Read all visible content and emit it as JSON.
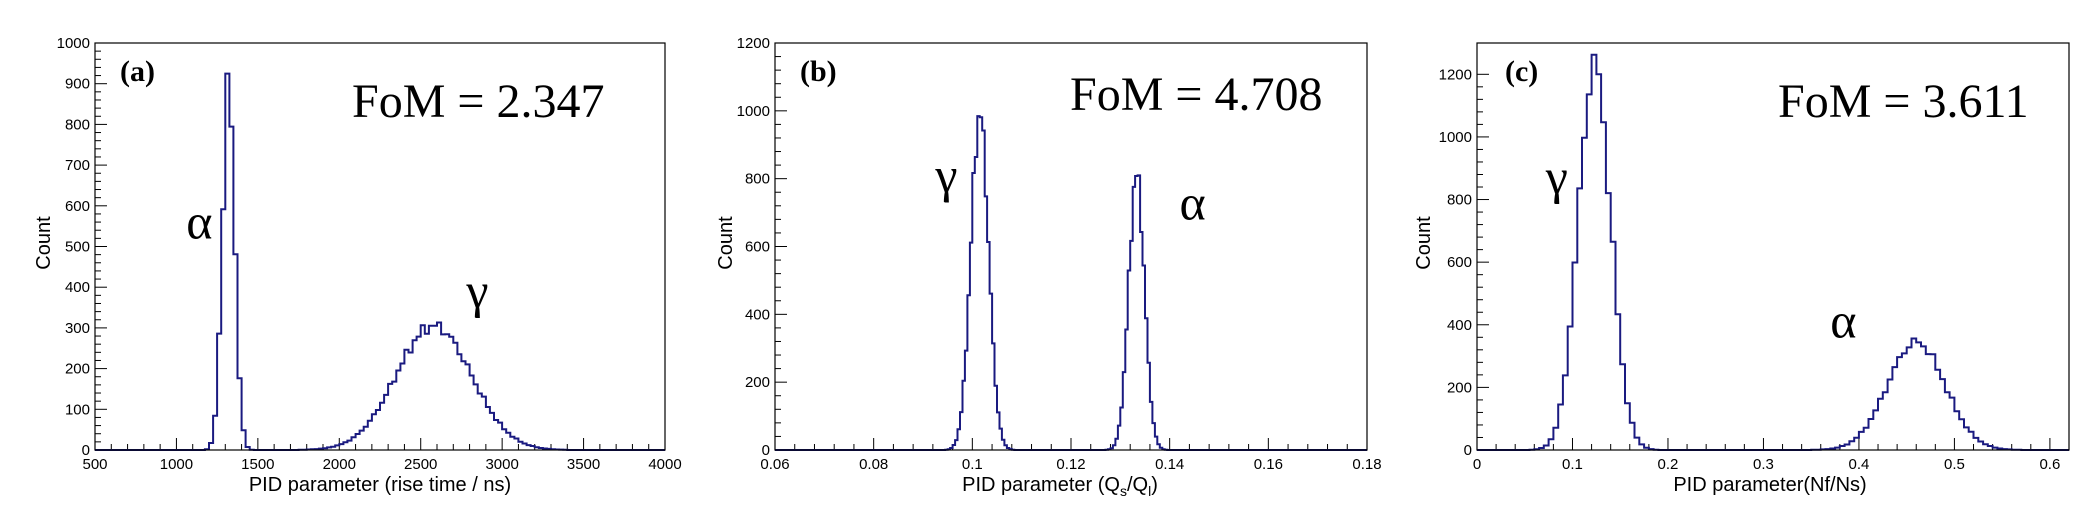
{
  "chart_data": [
    {
      "id": "a",
      "type": "histogram",
      "panel_label": "(a)",
      "annotation": "FoM = 2.347",
      "xlabel": "PID parameter (rise time / ns)",
      "ylabel": "Count",
      "xlim": [
        500,
        4000
      ],
      "ylim": [
        0,
        1000
      ],
      "xticks": [
        500,
        1000,
        1500,
        2000,
        2500,
        3000,
        3500,
        4000
      ],
      "yticks": [
        0,
        100,
        200,
        300,
        400,
        500,
        600,
        700,
        800,
        900,
        1000
      ],
      "line_color": "#1a1a80",
      "bin_width": 25,
      "peaks": [
        {
          "symbol": "α",
          "center": 1320,
          "sigma": 38,
          "height": 895,
          "label_x": 1060,
          "label_y": 520
        },
        {
          "symbol": "γ",
          "center": 2580,
          "sigma": 230,
          "height": 305,
          "label_x": 2780,
          "label_y": 350
        }
      ]
    },
    {
      "id": "b",
      "type": "histogram",
      "panel_label": "(b)",
      "annotation": "FoM = 4.708",
      "xlabel": "PID parameter (Q",
      "xlabel_sub1": "s",
      "xlabel_mid": "/Q",
      "xlabel_sub2": "l",
      "xlabel_end": ")",
      "ylabel": "Count",
      "xlim": [
        0.06,
        0.18
      ],
      "ylim": [
        0,
        1200
      ],
      "xticks": [
        0.06,
        0.08,
        0.1,
        0.12,
        0.14,
        0.16,
        0.18
      ],
      "yticks": [
        0,
        200,
        400,
        600,
        800,
        1000,
        1200
      ],
      "line_color": "#1a1a80",
      "bin_width": 0.0005,
      "peaks": [
        {
          "symbol": "γ",
          "center": 0.1015,
          "sigma": 0.0018,
          "height": 990,
          "label_x": 0.0925,
          "label_y": 760
        },
        {
          "symbol": "α",
          "center": 0.1333,
          "sigma": 0.0016,
          "height": 810,
          "label_x": 0.142,
          "label_y": 680
        }
      ]
    },
    {
      "id": "c",
      "type": "histogram",
      "panel_label": "(c)",
      "annotation": "FoM = 3.611",
      "xlabel": "PID parameter(Nf/Ns)",
      "ylabel": "Count",
      "xlim": [
        0,
        0.62
      ],
      "ylim": [
        0,
        1300
      ],
      "xticks": [
        0,
        0.1,
        0.2,
        0.3,
        0.4,
        0.5,
        0.6
      ],
      "yticks": [
        0,
        200,
        400,
        600,
        800,
        1000,
        1200
      ],
      "line_color": "#1a1a80",
      "bin_width": 0.005,
      "peaks": [
        {
          "symbol": "γ",
          "center": 0.123,
          "sigma": 0.017,
          "height": 1230,
          "label_x": 0.072,
          "label_y": 820
        },
        {
          "symbol": "α",
          "center": 0.46,
          "sigma": 0.03,
          "height": 345,
          "label_x": 0.37,
          "label_y": 360
        }
      ]
    }
  ]
}
